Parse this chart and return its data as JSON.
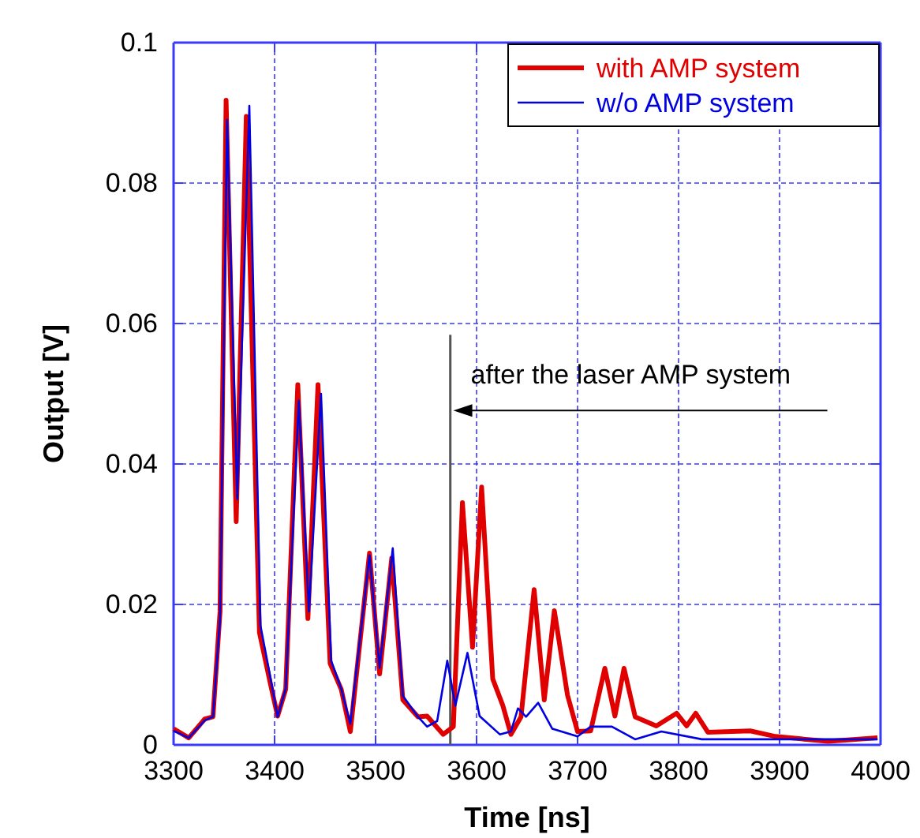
{
  "chart_data": {
    "type": "line",
    "xlabel": "Time [ns]",
    "ylabel": "Output [V]",
    "xlim": [
      3300,
      4000
    ],
    "xticks": [
      3300,
      3400,
      3500,
      3600,
      3700,
      3800,
      3900,
      4000
    ],
    "ylim": [
      0,
      0.1
    ],
    "yticks": [
      0,
      0.02,
      0.04,
      0.06,
      0.08,
      0.1
    ],
    "grid": true,
    "legend": "top right",
    "line_style": "solid",
    "series": [
      {
        "name": "with AMP system",
        "color": "#e00000",
        "x": [
          3300,
          3315,
          3331,
          3339,
          3346,
          3352,
          3362,
          3372,
          3385,
          3396,
          3403,
          3411,
          3423,
          3433,
          3443,
          3455,
          3466,
          3475,
          3494,
          3504,
          3516,
          3527,
          3542,
          3551,
          3567,
          3577,
          3586,
          3596,
          3605,
          3616,
          3626,
          3634,
          3644,
          3657,
          3667,
          3677,
          3690,
          3700,
          3713,
          3727,
          3737,
          3746,
          3757,
          3778,
          3798,
          3808,
          3817,
          3829,
          3871,
          3896,
          3948,
          3997
        ],
        "values": [
          0.0023,
          0.001,
          0.0037,
          0.004,
          0.019,
          0.0918,
          0.0318,
          0.0895,
          0.016,
          0.0086,
          0.0041,
          0.0079,
          0.0513,
          0.018,
          0.0513,
          0.0116,
          0.0079,
          0.0019,
          0.0273,
          0.0101,
          0.0266,
          0.0064,
          0.004,
          0.0041,
          0.0015,
          0.0026,
          0.0345,
          0.0139,
          0.0367,
          0.0094,
          0.0056,
          0.0015,
          0.004,
          0.0221,
          0.0064,
          0.0191,
          0.0071,
          0.0019,
          0.002,
          0.0109,
          0.0041,
          0.0109,
          0.004,
          0.0027,
          0.0045,
          0.0027,
          0.0045,
          0.0018,
          0.002,
          0.0012,
          0.0005,
          0.001
        ]
      },
      {
        "name": "w/o AMP system",
        "color": "#0000e0",
        "x": [
          3300,
          3315,
          3331,
          3339,
          3346,
          3353,
          3363,
          3375,
          3386,
          3396,
          3403,
          3411,
          3424,
          3434,
          3446,
          3456,
          3466,
          3475,
          3494,
          3504,
          3517,
          3527,
          3542,
          3551,
          3561,
          3571,
          3579,
          3591,
          3603,
          3623,
          3634,
          3641,
          3649,
          3661,
          3675,
          3700,
          3713,
          3734,
          3757,
          3783,
          3823,
          3896,
          3997
        ],
        "values": [
          0.002,
          0.001,
          0.0035,
          0.004,
          0.018,
          0.089,
          0.035,
          0.091,
          0.017,
          0.0095,
          0.004,
          0.008,
          0.049,
          0.019,
          0.05,
          0.012,
          0.008,
          0.003,
          0.027,
          0.011,
          0.028,
          0.007,
          0.004,
          0.0026,
          0.0034,
          0.012,
          0.0056,
          0.0131,
          0.0041,
          0.0015,
          0.0019,
          0.0052,
          0.004,
          0.006,
          0.0023,
          0.0012,
          0.0026,
          0.0026,
          0.0008,
          0.0019,
          0.0008,
          0.0008,
          0.0008
        ]
      }
    ],
    "ref_lines": [
      {
        "axis": "x",
        "value": 3574,
        "color": "#555555"
      }
    ],
    "annotations": [
      {
        "text": "after the laser AMP system",
        "x": 3577,
        "y": 0.0476
      }
    ]
  }
}
